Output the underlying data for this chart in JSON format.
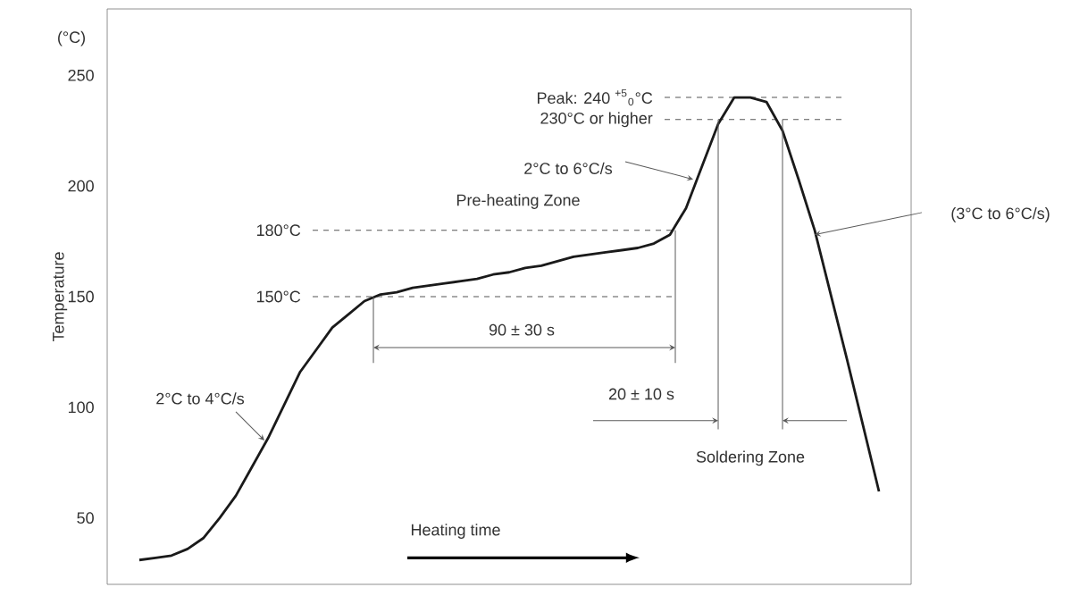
{
  "chart_data": {
    "type": "line",
    "ylabel": "Temperature",
    "xlabel": "Heating time",
    "ylim": [
      20,
      280
    ],
    "yticks": [
      50,
      100,
      150,
      200,
      250
    ],
    "tick_labels": "y",
    "marker": "none",
    "categories": [
      null,
      null,
      null,
      null,
      null,
      null,
      null,
      null,
      null,
      null,
      null,
      null,
      null,
      null,
      null,
      null,
      null,
      null,
      null,
      null,
      null,
      null,
      null,
      null,
      null,
      null,
      null,
      null,
      null,
      null,
      null,
      null,
      null,
      null,
      null,
      null,
      null,
      null,
      null,
      null,
      null,
      null,
      null,
      null,
      null,
      null,
      null
    ],
    "series": [
      {
        "color": "#1a1a1a",
        "line_style": "solid",
        "values": [
          31,
          32,
          33,
          36,
          41,
          50,
          60,
          73,
          86,
          101,
          116,
          126,
          136,
          142,
          148,
          151,
          152,
          154,
          155,
          156,
          157,
          158,
          160,
          161,
          163,
          164,
          166,
          168,
          169,
          170,
          171,
          172,
          174,
          178,
          190,
          209,
          228,
          240,
          240,
          238,
          225,
          203,
          180,
          151,
          122,
          92,
          62
        ]
      }
    ],
    "ref_lines": [
      {
        "axis": "y",
        "value": 240,
        "label": "Peak: 240 $^{+5}$$_{0}$°C",
        "color": "#555555",
        "line_style": "dashed"
      },
      {
        "axis": "y",
        "value": 230,
        "label": "230°C or higher",
        "color": "#555555",
        "line_style": "dashed"
      },
      {
        "axis": "y",
        "value": 180,
        "label": "180°C",
        "color": "#555555",
        "line_style": "dashed"
      },
      {
        "axis": "y",
        "value": 150,
        "label": "150°C",
        "color": "#555555",
        "line_style": "dashed"
      }
    ],
    "annotations": [
      "(°C)",
      "2°C to 6°C/s",
      "Pre-heating Zone",
      "90 ± 30 s",
      "2°C to 4°C/s",
      "20 ± 10 s",
      "Soldering Zone",
      "(3°C to 6°C/s)"
    ]
  }
}
